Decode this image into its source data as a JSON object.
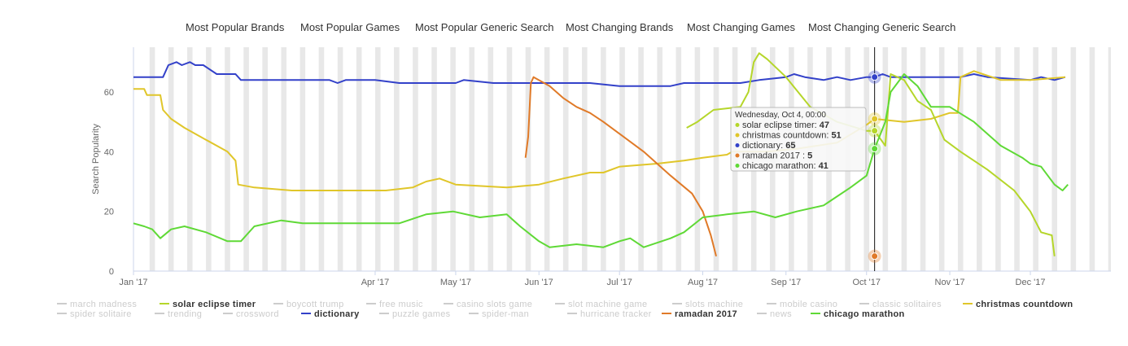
{
  "tabs": [
    "Most Popular Brands",
    "Most Popular Games",
    "Most Popular Generic Search",
    "Most Changing Brands",
    "Most Changing Games",
    "Most Changing Generic Search"
  ],
  "chart_data": {
    "type": "line",
    "ylabel": "Search Popularity",
    "xlabel": "",
    "ylim": [
      0,
      75
    ],
    "yticks": [
      0,
      20,
      40,
      60
    ],
    "x_tick_labels": [
      "Jan '17",
      "Apr '17",
      "May '17",
      "Jun '17",
      "Jul '17",
      "Aug '17",
      "Sep '17",
      "Oct '17",
      "Nov '17",
      "Dec '17"
    ],
    "x_tick_dates": [
      "2017-01-01",
      "2017-04-01",
      "2017-05-01",
      "2017-06-01",
      "2017-07-01",
      "2017-08-01",
      "2017-09-01",
      "2017-10-01",
      "2017-11-01",
      "2017-12-01"
    ],
    "x_range": [
      "2017-01-01",
      "2017-12-31"
    ],
    "crosshair_date": "2017-10-04",
    "tooltip": {
      "title": "Wednesday, Oct 4, 00:00",
      "rows": [
        {
          "name": "solar eclipse timer",
          "value": "47",
          "color": "#b5d62a"
        },
        {
          "name": "christmas countdown",
          "value": "51",
          "color": "#e0c62a"
        },
        {
          "name": "dictionary",
          "value": "65",
          "color": "#3341c9"
        },
        {
          "name": "ramadan 2017 ",
          "value": "5",
          "color": "#e07a28"
        },
        {
          "name": "chicago marathon",
          "value": "41",
          "color": "#5fd936"
        }
      ]
    },
    "series": [
      {
        "name": "dictionary",
        "color": "#3341c9",
        "points": [
          [
            "2017-01-01",
            65
          ],
          [
            "2017-01-12",
            65
          ],
          [
            "2017-01-14",
            69
          ],
          [
            "2017-01-17",
            70
          ],
          [
            "2017-01-19",
            69
          ],
          [
            "2017-01-22",
            70
          ],
          [
            "2017-01-24",
            69
          ],
          [
            "2017-01-27",
            69
          ],
          [
            "2017-02-01",
            66
          ],
          [
            "2017-02-08",
            66
          ],
          [
            "2017-02-10",
            64
          ],
          [
            "2017-03-15",
            64
          ],
          [
            "2017-03-18",
            63
          ],
          [
            "2017-03-21",
            64
          ],
          [
            "2017-04-01",
            64
          ],
          [
            "2017-04-10",
            63
          ],
          [
            "2017-05-01",
            63
          ],
          [
            "2017-05-04",
            64
          ],
          [
            "2017-05-15",
            63
          ],
          [
            "2017-06-01",
            63
          ],
          [
            "2017-06-10",
            63
          ],
          [
            "2017-06-20",
            63
          ],
          [
            "2017-07-01",
            62
          ],
          [
            "2017-07-20",
            62
          ],
          [
            "2017-07-25",
            63
          ],
          [
            "2017-08-10",
            63
          ],
          [
            "2017-08-15",
            63
          ],
          [
            "2017-08-22",
            64
          ],
          [
            "2017-09-01",
            65
          ],
          [
            "2017-09-04",
            66
          ],
          [
            "2017-09-08",
            65
          ],
          [
            "2017-09-15",
            64
          ],
          [
            "2017-09-20",
            65
          ],
          [
            "2017-09-25",
            64
          ],
          [
            "2017-10-01",
            65
          ],
          [
            "2017-10-04",
            65
          ],
          [
            "2017-10-07",
            66
          ],
          [
            "2017-10-10",
            65
          ],
          [
            "2017-11-01",
            65
          ],
          [
            "2017-11-05",
            65
          ],
          [
            "2017-11-10",
            66
          ],
          [
            "2017-11-15",
            65
          ],
          [
            "2017-12-01",
            64
          ],
          [
            "2017-12-05",
            65
          ],
          [
            "2017-12-10",
            64
          ],
          [
            "2017-12-14",
            65
          ]
        ]
      },
      {
        "name": "christmas countdown",
        "color": "#e0c62a",
        "points": [
          [
            "2017-01-01",
            61
          ],
          [
            "2017-01-05",
            61
          ],
          [
            "2017-01-06",
            59
          ],
          [
            "2017-01-11",
            59
          ],
          [
            "2017-01-12",
            54
          ],
          [
            "2017-01-15",
            51
          ],
          [
            "2017-01-20",
            48
          ],
          [
            "2017-01-28",
            44
          ],
          [
            "2017-02-05",
            40
          ],
          [
            "2017-02-08",
            37
          ],
          [
            "2017-02-09",
            29
          ],
          [
            "2017-02-15",
            28
          ],
          [
            "2017-03-01",
            27
          ],
          [
            "2017-03-25",
            27
          ],
          [
            "2017-04-05",
            27
          ],
          [
            "2017-04-15",
            28
          ],
          [
            "2017-04-20",
            30
          ],
          [
            "2017-04-25",
            31
          ],
          [
            "2017-05-01",
            29
          ],
          [
            "2017-05-20",
            28
          ],
          [
            "2017-06-01",
            29
          ],
          [
            "2017-06-10",
            31
          ],
          [
            "2017-06-20",
            33
          ],
          [
            "2017-06-25",
            33
          ],
          [
            "2017-07-01",
            35
          ],
          [
            "2017-07-15",
            36
          ],
          [
            "2017-07-25",
            37
          ],
          [
            "2017-08-01",
            38
          ],
          [
            "2017-08-10",
            39
          ],
          [
            "2017-08-12",
            40
          ],
          [
            "2017-08-25",
            40
          ],
          [
            "2017-09-05",
            41
          ],
          [
            "2017-09-20",
            43
          ],
          [
            "2017-10-01",
            49
          ],
          [
            "2017-10-04",
            51
          ],
          [
            "2017-10-15",
            50
          ],
          [
            "2017-10-25",
            51
          ],
          [
            "2017-11-01",
            53
          ],
          [
            "2017-11-04",
            53
          ],
          [
            "2017-11-05",
            65
          ],
          [
            "2017-11-10",
            67
          ],
          [
            "2017-11-20",
            64
          ],
          [
            "2017-12-01",
            64
          ],
          [
            "2017-12-14",
            65
          ]
        ]
      },
      {
        "name": "solar eclipse timer",
        "color": "#b5d62a",
        "points": [
          [
            "2017-07-26",
            48
          ],
          [
            "2017-07-30",
            50
          ],
          [
            "2017-08-05",
            54
          ],
          [
            "2017-08-15",
            55
          ],
          [
            "2017-08-18",
            60
          ],
          [
            "2017-08-20",
            70
          ],
          [
            "2017-08-22",
            73
          ],
          [
            "2017-08-25",
            71
          ],
          [
            "2017-09-01",
            65
          ],
          [
            "2017-09-10",
            55
          ],
          [
            "2017-09-20",
            50
          ],
          [
            "2017-10-01",
            47
          ],
          [
            "2017-10-04",
            47
          ],
          [
            "2017-10-08",
            42
          ],
          [
            "2017-10-10",
            66
          ],
          [
            "2017-10-15",
            64
          ],
          [
            "2017-10-20",
            57
          ],
          [
            "2017-10-25",
            54
          ],
          [
            "2017-10-30",
            44
          ],
          [
            "2017-11-05",
            40
          ],
          [
            "2017-11-15",
            34
          ],
          [
            "2017-11-25",
            27
          ],
          [
            "2017-12-01",
            20
          ],
          [
            "2017-12-05",
            13
          ],
          [
            "2017-12-09",
            12
          ],
          [
            "2017-12-10",
            5
          ]
        ]
      },
      {
        "name": "ramadan 2017 ",
        "color": "#e07a28",
        "points": [
          [
            "2017-05-27",
            38
          ],
          [
            "2017-05-28",
            45
          ],
          [
            "2017-05-29",
            63
          ],
          [
            "2017-05-30",
            65
          ],
          [
            "2017-06-05",
            62
          ],
          [
            "2017-06-10",
            58
          ],
          [
            "2017-06-15",
            55
          ],
          [
            "2017-06-20",
            53
          ],
          [
            "2017-06-25",
            50
          ],
          [
            "2017-07-01",
            46
          ],
          [
            "2017-07-10",
            40
          ],
          [
            "2017-07-20",
            32
          ],
          [
            "2017-07-28",
            26
          ],
          [
            "2017-08-01",
            20
          ],
          [
            "2017-08-04",
            12
          ],
          [
            "2017-08-06",
            5
          ]
        ]
      },
      {
        "name": "chicago marathon",
        "color": "#5fd936",
        "points": [
          [
            "2017-01-01",
            16
          ],
          [
            "2017-01-05",
            15
          ],
          [
            "2017-01-08",
            14
          ],
          [
            "2017-01-11",
            11
          ],
          [
            "2017-01-15",
            14
          ],
          [
            "2017-01-20",
            15
          ],
          [
            "2017-01-28",
            13
          ],
          [
            "2017-02-05",
            10
          ],
          [
            "2017-02-10",
            10
          ],
          [
            "2017-02-15",
            15
          ],
          [
            "2017-02-25",
            17
          ],
          [
            "2017-03-05",
            16
          ],
          [
            "2017-03-20",
            16
          ],
          [
            "2017-04-10",
            16
          ],
          [
            "2017-04-20",
            19
          ],
          [
            "2017-04-30",
            20
          ],
          [
            "2017-05-10",
            18
          ],
          [
            "2017-05-20",
            19
          ],
          [
            "2017-05-25",
            15
          ],
          [
            "2017-06-01",
            10
          ],
          [
            "2017-06-05",
            8
          ],
          [
            "2017-06-15",
            9
          ],
          [
            "2017-06-25",
            8
          ],
          [
            "2017-07-01",
            10
          ],
          [
            "2017-07-05",
            11
          ],
          [
            "2017-07-10",
            8
          ],
          [
            "2017-07-20",
            11
          ],
          [
            "2017-07-25",
            13
          ],
          [
            "2017-08-01",
            18
          ],
          [
            "2017-08-10",
            19
          ],
          [
            "2017-08-20",
            20
          ],
          [
            "2017-08-28",
            18
          ],
          [
            "2017-09-05",
            20
          ],
          [
            "2017-09-15",
            22
          ],
          [
            "2017-09-25",
            28
          ],
          [
            "2017-10-01",
            32
          ],
          [
            "2017-10-04",
            41
          ],
          [
            "2017-10-08",
            50
          ],
          [
            "2017-10-10",
            60
          ],
          [
            "2017-10-15",
            66
          ],
          [
            "2017-10-20",
            62
          ],
          [
            "2017-10-25",
            55
          ],
          [
            "2017-11-01",
            55
          ],
          [
            "2017-11-10",
            50
          ],
          [
            "2017-11-20",
            42
          ],
          [
            "2017-11-28",
            38
          ],
          [
            "2017-12-01",
            36
          ],
          [
            "2017-12-05",
            35
          ],
          [
            "2017-12-10",
            29
          ],
          [
            "2017-12-13",
            27
          ],
          [
            "2017-12-15",
            29
          ]
        ]
      }
    ],
    "legend": [
      {
        "name": "march madness",
        "active": false
      },
      {
        "name": "solar eclipse timer",
        "active": true,
        "color": "#b5d62a"
      },
      {
        "name": "boycott trump",
        "active": false
      },
      {
        "name": "free music",
        "active": false
      },
      {
        "name": "casino slots game",
        "active": false
      },
      {
        "name": "slot machine game",
        "active": false
      },
      {
        "name": "slots machine",
        "active": false
      },
      {
        "name": "mobile casino",
        "active": false
      },
      {
        "name": "classic solitaires",
        "active": false
      },
      {
        "name": "christmas countdown",
        "active": true,
        "color": "#e0c62a"
      },
      {
        "name": "spider solitaire",
        "active": false
      },
      {
        "name": "trending",
        "active": false
      },
      {
        "name": "crossword",
        "active": false
      },
      {
        "name": "dictionary",
        "active": true,
        "color": "#3341c9"
      },
      {
        "name": "puzzle games",
        "active": false
      },
      {
        "name": "spider-man",
        "active": false
      },
      {
        "name": "hurricane tracker",
        "active": false
      },
      {
        "name": "ramadan 2017",
        "active": true,
        "color": "#e07a28"
      },
      {
        "name": "news",
        "active": false
      },
      {
        "name": "chicago marathon",
        "active": true,
        "color": "#5fd936"
      }
    ],
    "inactive_color": "#cccccc"
  }
}
